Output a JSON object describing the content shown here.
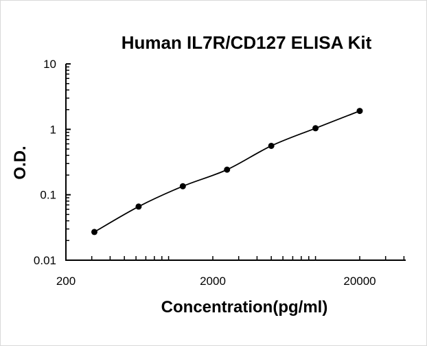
{
  "chart_data": {
    "type": "line",
    "title": "Human IL7R/CD127 ELISA Kit",
    "xlabel": "Concentration(pg/ml)",
    "ylabel": "O.D.",
    "x_scale": "log",
    "y_scale": "log",
    "xlim": [
      200,
      40000
    ],
    "ylim": [
      0.01,
      10
    ],
    "x_ticks": [
      "200",
      "2000",
      "20000"
    ],
    "y_ticks": [
      "10",
      "1",
      "0.1",
      "0.01"
    ],
    "grid": false,
    "legend": "none",
    "series": [
      {
        "x": [
          312.5,
          625,
          1250,
          2500,
          5000,
          10000,
          20000
        ],
        "y": [
          0.027,
          0.066,
          0.135,
          0.242,
          0.559,
          1.04,
          1.91
        ],
        "marker": "circle",
        "color": "#000000"
      }
    ]
  }
}
